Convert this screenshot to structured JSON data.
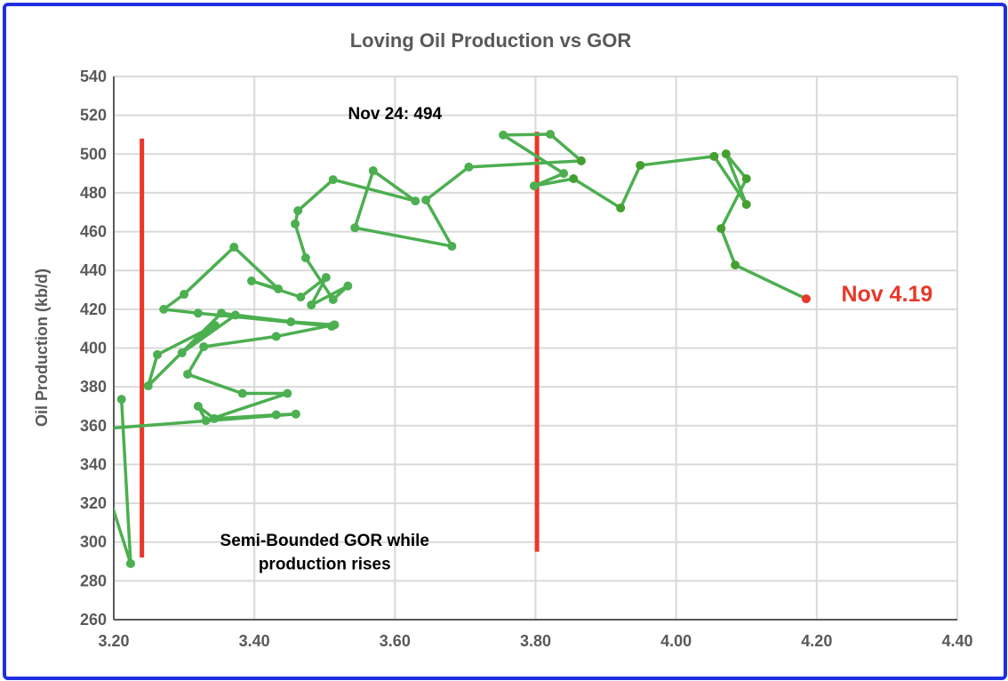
{
  "chart_data": {
    "type": "line",
    "title": "Loving Oil Production vs GOR",
    "xlabel": "",
    "ylabel": "Oil Production (kb/d)",
    "xlim": [
      3.2,
      4.4
    ],
    "ylim": [
      260,
      540
    ],
    "xticks": [
      "3.20",
      "3.40",
      "3.60",
      "3.80",
      "4.00",
      "4.20",
      "4.40"
    ],
    "xtick_values": [
      3.2,
      3.4,
      3.6,
      3.8,
      4.0,
      4.2,
      4.4
    ],
    "yticks": [
      "260",
      "280",
      "300",
      "320",
      "340",
      "360",
      "380",
      "400",
      "420",
      "440",
      "460",
      "480",
      "500",
      "520",
      "540"
    ],
    "ytick_values": [
      260,
      280,
      300,
      320,
      340,
      360,
      380,
      400,
      420,
      440,
      460,
      480,
      500,
      520,
      540
    ],
    "grid": true,
    "series": [
      {
        "name": "Loving",
        "color": "#4caf50",
        "points": [
          [
            3.211,
            373.6
          ],
          [
            3.224,
            288.9
          ],
          [
            3.17,
            350
          ],
          [
            3.17,
            358
          ],
          [
            3.459,
            366
          ],
          [
            3.431,
            365.6
          ],
          [
            3.343,
            363.6
          ],
          [
            3.32,
            370
          ],
          [
            3.331,
            362.6
          ],
          [
            3.447,
            376.6
          ],
          [
            3.383,
            376.6
          ],
          [
            3.305,
            386.5
          ],
          [
            3.328,
            400.7
          ],
          [
            3.431,
            406
          ],
          [
            3.514,
            412
          ],
          [
            3.452,
            413.5
          ],
          [
            3.353,
            418
          ],
          [
            3.249,
            380.5
          ],
          [
            3.262,
            396.6
          ],
          [
            3.344,
            411.7
          ],
          [
            3.297,
            397.5
          ],
          [
            3.373,
            417
          ],
          [
            3.51,
            411.2
          ],
          [
            3.32,
            418
          ],
          [
            3.271,
            420
          ],
          [
            3.3,
            427.7
          ],
          [
            3.371,
            452
          ],
          [
            3.434,
            430.5
          ],
          [
            3.396,
            434.6
          ],
          [
            3.466,
            426.3
          ],
          [
            3.502,
            436.4
          ],
          [
            3.481,
            422.2
          ],
          [
            3.533,
            432
          ],
          [
            3.512,
            425
          ],
          [
            3.473,
            446.5
          ],
          [
            3.458,
            464
          ],
          [
            3.462,
            470.8
          ],
          [
            3.512,
            486.8
          ],
          [
            3.629,
            475.8
          ],
          [
            3.569,
            491.4
          ],
          [
            3.543,
            462
          ],
          [
            3.681,
            452.5
          ],
          [
            3.644,
            476.3
          ],
          [
            3.705,
            493.3
          ],
          [
            3.865,
            496.5
          ],
          [
            3.821,
            510.2
          ],
          [
            3.754,
            509.8
          ],
          [
            3.84,
            490
          ],
          [
            3.798,
            483.6
          ],
          [
            3.854,
            487.3
          ],
          [
            3.921,
            472.2
          ],
          [
            3.949,
            494.2
          ],
          [
            4.054,
            498.8
          ],
          [
            4.1,
            474
          ],
          [
            4.071,
            500.1
          ],
          [
            4.1,
            487.3
          ],
          [
            4.064,
            461.6
          ],
          [
            4.084,
            442.8
          ],
          [
            4.185,
            425.4
          ]
        ],
        "last_point_color": "#e8382a"
      }
    ],
    "reference_lines": [
      {
        "x": 3.24,
        "y_from": 292,
        "y_to": 508,
        "color": "#e8382a"
      },
      {
        "x": 3.802,
        "y_from": 295,
        "y_to": 511.5,
        "color": "#e8382a"
      }
    ],
    "annotations": [
      {
        "text": "Nov 24: 494",
        "x": 3.6,
        "y": 518,
        "color": "#000000"
      },
      {
        "text": "Nov 4.19",
        "x": 4.3,
        "y": 424,
        "color": "#e8382a"
      },
      {
        "text": "Semi-Bounded GOR while",
        "x": 3.5,
        "y": 298,
        "color": "#000000"
      },
      {
        "text": "production rises",
        "x": 3.5,
        "y": 286,
        "color": "#000000"
      }
    ]
  }
}
